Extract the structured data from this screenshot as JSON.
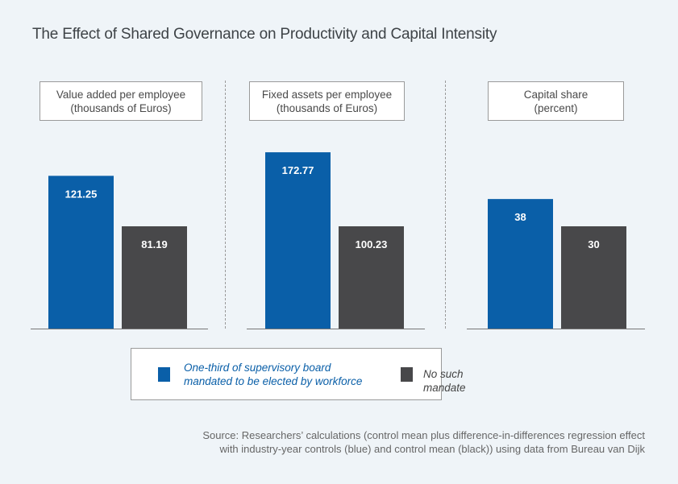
{
  "chart_data": [
    {
      "type": "bar",
      "title": "Value added per employee",
      "subtitle": "(thousands of Euros)",
      "categories": [
        "One-third of supervisory board mandated to be elected by workforce",
        "No such mandate"
      ],
      "values": [
        121.25,
        81.19
      ],
      "value_labels": [
        "121.25",
        "81.19"
      ]
    },
    {
      "type": "bar",
      "title": "Fixed assets per employee",
      "subtitle": "(thousands of Euros)",
      "categories": [
        "One-third of supervisory board mandated to be elected by workforce",
        "No such mandate"
      ],
      "values": [
        172.77,
        100.23
      ],
      "value_labels": [
        "172.77",
        "100.23"
      ]
    },
    {
      "type": "bar",
      "title": "Capital share",
      "subtitle": "(percent)",
      "categories": [
        "One-third of supervisory board mandated to be elected by workforce",
        "No such mandate"
      ],
      "values": [
        38,
        30
      ],
      "value_labels": [
        "38",
        "30"
      ]
    }
  ],
  "title": "The Effect of Shared Governance on Productivity and Capital Intensity",
  "legend": {
    "placement": "bottom",
    "items": [
      {
        "label_line1": "One-third of supervisory board",
        "label_line2": "mandated to be elected by workforce",
        "color": "#0a5fa8"
      },
      {
        "label": "No such mandate",
        "color": "#48484a"
      }
    ]
  },
  "source": {
    "line1": "Source: Researchers’ calculations (control mean plus difference-in-differences regression effect",
    "line2": "with industry-year controls (blue) and control mean (black)) using data from Bureau van Dijk"
  },
  "colors": {
    "blue": "#0a5fa8",
    "gray": "#48484a",
    "background": "#eff4f8"
  }
}
